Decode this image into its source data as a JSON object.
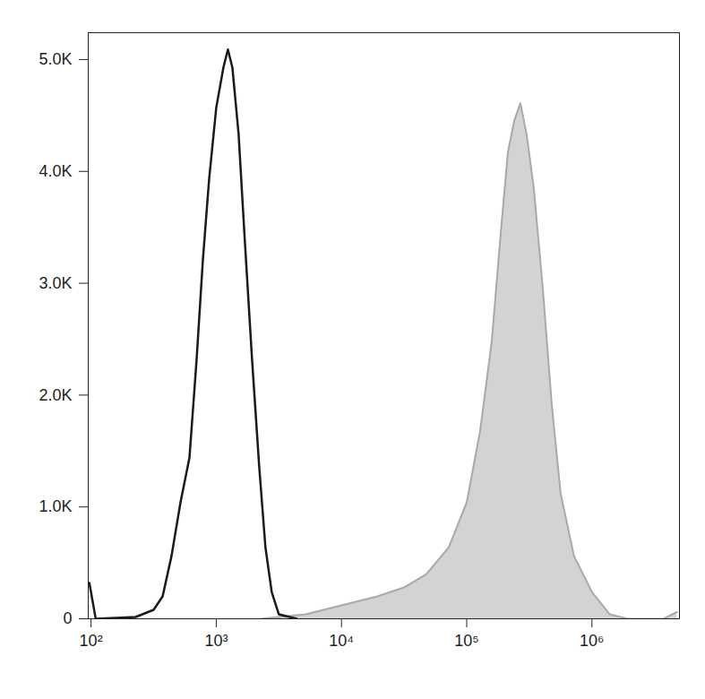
{
  "chart_data": {
    "type": "line",
    "log": "x",
    "grid": false,
    "xlim": [
      95,
      5000000
    ],
    "xticks": [
      {
        "value": 100,
        "label": "10²"
      },
      {
        "value": 1000,
        "label": "10³"
      },
      {
        "value": 10000,
        "label": "10⁴"
      },
      {
        "value": 100000,
        "label": "10⁵"
      },
      {
        "value": 1000000,
        "label": "10⁶"
      }
    ],
    "ylim": [
      0,
      5240
    ],
    "yticks": [
      0,
      {
        "value": 1000,
        "label": "1.0K"
      },
      {
        "value": 2000,
        "label": "2.0K"
      },
      {
        "value": 3000,
        "label": "3.0K"
      },
      {
        "value": 4000,
        "label": "4.0K"
      },
      {
        "value": 5000,
        "label": "5.0K"
      }
    ],
    "series": [
      {
        "type": "area",
        "color": "#d3d3d3",
        "x": [
          2276,
          5179,
          10000,
          19310,
          31620,
          47700,
          71970,
          100000,
          128000,
          158500,
          186700,
          213200,
          239100,
          268300,
          301100,
          343400,
          404700,
          477300,
          562300,
          719700,
          1000000,
          1389000,
          1931000,
          3728000,
          4772000
        ],
        "values": [
          0,
          40,
          120,
          200,
          280,
          400,
          640,
          1040,
          1680,
          2480,
          3440,
          4170,
          4450,
          4610,
          4330,
          3850,
          2960,
          1920,
          1120,
          560,
          240,
          40,
          0,
          0,
          60
        ]
      },
      {
        "type": "line",
        "color": "#1a1a1a",
        "x": [
          97,
          109,
          227,
          316,
          373,
          439,
          518,
          611,
          697,
          781,
          877,
          1000,
          1141,
          1239,
          1345,
          1509,
          1693,
          1931,
          2203,
          2470,
          2772,
          3162,
          4394
        ],
        "values": [
          320,
          0,
          16,
          80,
          200,
          560,
          1040,
          1440,
          2320,
          3200,
          3930,
          4570,
          4930,
          5090,
          4930,
          4330,
          3370,
          2320,
          1360,
          640,
          240,
          40,
          0
        ]
      }
    ]
  }
}
